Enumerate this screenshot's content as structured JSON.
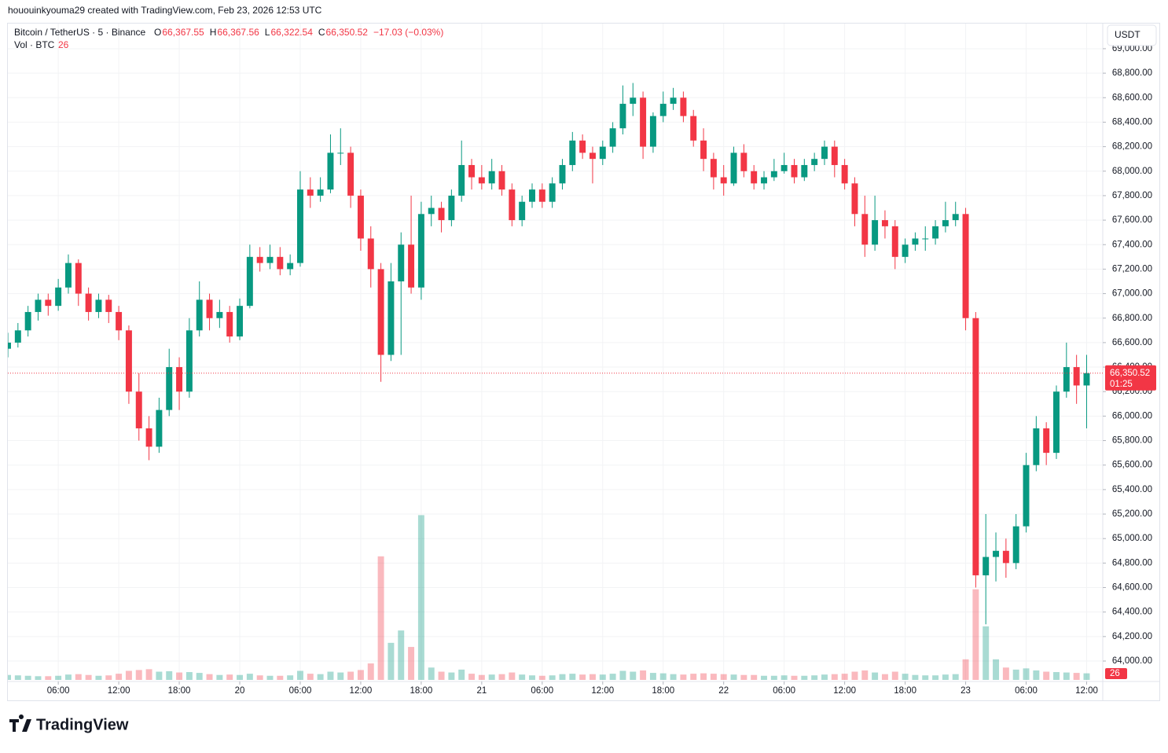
{
  "header": {
    "author_line": "hououinkyouma29 created with TradingView.com, Feb 23, 2026 12:53 UTC",
    "brand": "TradingView"
  },
  "chart_data": {
    "type": "candlestick",
    "symbol": "Bitcoin / TetherUS · 5 · Binance",
    "ohlc_legend": [
      {
        "key": "O",
        "value": "66,367.55"
      },
      {
        "key": "H",
        "value": "66,367.56"
      },
      {
        "key": "L",
        "value": "66,322.54"
      },
      {
        "key": "C",
        "value": "66,350.52"
      }
    ],
    "change": "−17.03 (−0.03%)",
    "volume_legend": {
      "label": "Vol · BTC",
      "value": 26
    },
    "currency": "USDT",
    "last_price": {
      "value": 66350.52,
      "label": "66,350.52"
    },
    "countdown": "01:25",
    "up_color": "#089981",
    "down_color": "#f23645",
    "xlim": [
      1.0,
      109.6
    ],
    "xticks": [
      {
        "value": 6,
        "label": "06:00"
      },
      {
        "value": 12,
        "label": "12:00"
      },
      {
        "value": 18,
        "label": "18:00"
      },
      {
        "value": 24,
        "label": "20"
      },
      {
        "value": 30,
        "label": "06:00"
      },
      {
        "value": 36,
        "label": "12:00"
      },
      {
        "value": 42,
        "label": "18:00"
      },
      {
        "value": 48,
        "label": "21"
      },
      {
        "value": 54,
        "label": "06:00"
      },
      {
        "value": 60,
        "label": "12:00"
      },
      {
        "value": 66,
        "label": "18:00"
      },
      {
        "value": 72,
        "label": "22"
      },
      {
        "value": 78,
        "label": "06:00"
      },
      {
        "value": 84,
        "label": "12:00"
      },
      {
        "value": 90,
        "label": "18:00"
      },
      {
        "value": 96,
        "label": "23"
      },
      {
        "value": 102,
        "label": "06:00"
      },
      {
        "value": 108,
        "label": "12:00"
      }
    ],
    "ylim": [
      63846,
      69205
    ],
    "yticks": [
      {
        "value": 64000,
        "label": "64,000.00"
      },
      {
        "value": 64200,
        "label": "64,200.00"
      },
      {
        "value": 64400,
        "label": "64,400.00"
      },
      {
        "value": 64600,
        "label": "64,600.00"
      },
      {
        "value": 64800,
        "label": "64,800.00"
      },
      {
        "value": 65000,
        "label": "65,000.00"
      },
      {
        "value": 65200,
        "label": "65,200.00"
      },
      {
        "value": 65400,
        "label": "65,400.00"
      },
      {
        "value": 65600,
        "label": "65,600.00"
      },
      {
        "value": 65800,
        "label": "65,800.00"
      },
      {
        "value": 66000,
        "label": "66,000.00"
      },
      {
        "value": 66200,
        "label": "66,200.00"
      },
      {
        "value": 66400,
        "label": "66,400.00"
      },
      {
        "value": 66600,
        "label": "66,600.00"
      },
      {
        "value": 66800,
        "label": "66,800.00"
      },
      {
        "value": 67000,
        "label": "67,000.00"
      },
      {
        "value": 67200,
        "label": "67,200.00"
      },
      {
        "value": 67400,
        "label": "67,400.00"
      },
      {
        "value": 67600,
        "label": "67,600.00"
      },
      {
        "value": 67800,
        "label": "67,800.00"
      },
      {
        "value": 68000,
        "label": "68,000.00"
      },
      {
        "value": 68200,
        "label": "68,200.00"
      },
      {
        "value": 68400,
        "label": "68,400.00"
      },
      {
        "value": 68600,
        "label": "68,600.00"
      },
      {
        "value": 68800,
        "label": "68,800.00"
      },
      {
        "value": 69000,
        "label": "69,000.00"
      }
    ],
    "vlim": [
      0,
      5000
    ],
    "grid": true,
    "x": [
      1,
      2,
      3,
      4,
      5,
      6,
      7,
      8,
      9,
      10,
      11,
      12,
      13,
      14,
      15,
      16,
      17,
      18,
      19,
      20,
      21,
      22,
      23,
      24,
      25,
      26,
      27,
      28,
      29,
      30,
      31,
      32,
      33,
      34,
      35,
      36,
      37,
      38,
      39,
      40,
      41,
      42,
      43,
      44,
      45,
      46,
      47,
      48,
      49,
      50,
      51,
      52,
      53,
      54,
      55,
      56,
      57,
      58,
      59,
      60,
      61,
      62,
      63,
      64,
      65,
      66,
      67,
      68,
      69,
      70,
      71,
      72,
      73,
      74,
      75,
      76,
      77,
      78,
      79,
      80,
      81,
      82,
      83,
      84,
      85,
      86,
      87,
      88,
      89,
      90,
      91,
      92,
      93,
      94,
      95,
      96,
      97,
      98,
      99,
      100,
      101,
      102,
      103,
      104,
      105,
      106,
      107,
      108
    ],
    "open": [
      66550,
      66600,
      66700,
      66850,
      66950,
      66900,
      67050,
      67250,
      67000,
      66850,
      66950,
      66850,
      66700,
      66200,
      65900,
      65750,
      66050,
      66400,
      66200,
      66700,
      66950,
      66800,
      66850,
      66650,
      66900,
      67300,
      67250,
      67300,
      67200,
      67250,
      67850,
      67800,
      67850,
      68150,
      68150,
      67800,
      67450,
      67200,
      66500,
      67100,
      67400,
      67050,
      67650,
      67700,
      67600,
      67800,
      68050,
      67950,
      67900,
      68000,
      67850,
      67600,
      67750,
      67850,
      67750,
      67900,
      68050,
      68250,
      68150,
      68100,
      68200,
      68350,
      68550,
      68600,
      68200,
      68450,
      68550,
      68600,
      68450,
      68250,
      68100,
      67950,
      67900,
      68150,
      68000,
      67900,
      67950,
      68000,
      68050,
      67950,
      68050,
      68100,
      68200,
      68050,
      67900,
      67650,
      67400,
      67600,
      67550,
      67300,
      67400,
      67450,
      67450,
      67550,
      67600,
      67650,
      66800,
      64700,
      64850,
      64900,
      64800,
      65100,
      65600,
      65900,
      65700,
      66200,
      66400,
      66250
    ],
    "high": [
      66680,
      66760,
      66900,
      67000,
      67000,
      67120,
      67320,
      67280,
      67050,
      67000,
      66990,
      66900,
      66740,
      66350,
      66000,
      66150,
      66550,
      66480,
      66800,
      67100,
      67000,
      66950,
      66900,
      66960,
      67400,
      67380,
      67400,
      67380,
      67320,
      68000,
      67950,
      67950,
      68300,
      68350,
      68200,
      67850,
      67550,
      67250,
      67250,
      67500,
      67800,
      67750,
      67800,
      67750,
      67850,
      68250,
      68100,
      68050,
      68100,
      68050,
      67900,
      67800,
      67900,
      67900,
      67950,
      68100,
      68320,
      68300,
      68200,
      68250,
      68400,
      68700,
      68720,
      68650,
      68480,
      68650,
      68680,
      68650,
      68500,
      68350,
      68150,
      68050,
      68200,
      68220,
      68050,
      68000,
      68100,
      68150,
      68100,
      68100,
      68150,
      68250,
      68250,
      68100,
      67950,
      67800,
      67800,
      67680,
      67600,
      67450,
      67500,
      67550,
      67600,
      67750,
      67750,
      67700,
      66850,
      65200,
      65050,
      65000,
      65200,
      65700,
      66000,
      65950,
      66250,
      66600,
      66500,
      66500
    ],
    "low": [
      66480,
      66560,
      66650,
      66780,
      66820,
      66860,
      67000,
      66900,
      66780,
      66800,
      66760,
      66620,
      66100,
      65800,
      65640,
      65700,
      66000,
      66050,
      66150,
      66650,
      66700,
      66720,
      66600,
      66620,
      66880,
      67180,
      67200,
      67150,
      67150,
      67220,
      67700,
      67750,
      67820,
      68050,
      67700,
      67350,
      67050,
      66280,
      66450,
      66500,
      67000,
      66950,
      67550,
      67500,
      67550,
      67750,
      67850,
      67850,
      67850,
      67800,
      67550,
      67550,
      67700,
      67700,
      67700,
      67850,
      68000,
      68100,
      67900,
      68050,
      68150,
      68300,
      68450,
      68100,
      68150,
      68400,
      68500,
      68400,
      68200,
      68000,
      67850,
      67800,
      67880,
      67950,
      67850,
      67850,
      67920,
      67980,
      67900,
      67920,
      68000,
      68050,
      67950,
      67850,
      67550,
      67300,
      67350,
      67450,
      67200,
      67250,
      67350,
      67350,
      67400,
      67500,
      67550,
      66700,
      64600,
      64300,
      64650,
      64680,
      64750,
      65050,
      65550,
      65600,
      65650,
      66150,
      66100,
      65900
    ],
    "close": [
      66600,
      66700,
      66850,
      66950,
      66900,
      67050,
      67250,
      67000,
      66850,
      66950,
      66850,
      66700,
      66200,
      65900,
      65750,
      66050,
      66400,
      66200,
      66700,
      66950,
      66800,
      66850,
      66650,
      66900,
      67300,
      67250,
      67300,
      67200,
      67250,
      67850,
      67800,
      67850,
      68150,
      68150,
      67800,
      67450,
      67200,
      66500,
      67100,
      67400,
      67050,
      67650,
      67700,
      67600,
      67800,
      68050,
      67950,
      67900,
      68000,
      67850,
      67600,
      67750,
      67850,
      67750,
      67900,
      68050,
      68250,
      68150,
      68100,
      68200,
      68350,
      68550,
      68600,
      68200,
      68450,
      68550,
      68600,
      68450,
      68250,
      68100,
      67950,
      67900,
      68150,
      68000,
      67900,
      67950,
      68000,
      68050,
      67950,
      68050,
      68100,
      68200,
      68050,
      67900,
      67650,
      67400,
      67600,
      67550,
      67300,
      67400,
      67450,
      67450,
      67550,
      67600,
      67650,
      66800,
      64700,
      64850,
      64900,
      64800,
      65100,
      65600,
      65900,
      65700,
      66200,
      66400,
      66250,
      66350.52
    ],
    "volume": [
      120,
      110,
      100,
      90,
      90,
      100,
      130,
      140,
      120,
      100,
      110,
      150,
      220,
      240,
      260,
      200,
      210,
      180,
      190,
      170,
      140,
      120,
      130,
      120,
      150,
      110,
      100,
      100,
      110,
      220,
      150,
      140,
      200,
      180,
      200,
      240,
      400,
      3000,
      900,
      1200,
      800,
      4000,
      300,
      200,
      180,
      250,
      150,
      120,
      130,
      140,
      180,
      130,
      110,
      100,
      110,
      140,
      150,
      130,
      140,
      130,
      150,
      220,
      200,
      230,
      170,
      160,
      140,
      130,
      150,
      160,
      150,
      140,
      130,
      120,
      120,
      100,
      100,
      110,
      100,
      100,
      110,
      130,
      140,
      150,
      200,
      230,
      180,
      140,
      200,
      150,
      120,
      110,
      110,
      130,
      140,
      500,
      2200,
      1300,
      500,
      300,
      250,
      280,
      230,
      200,
      190,
      180,
      170,
      160
    ]
  }
}
